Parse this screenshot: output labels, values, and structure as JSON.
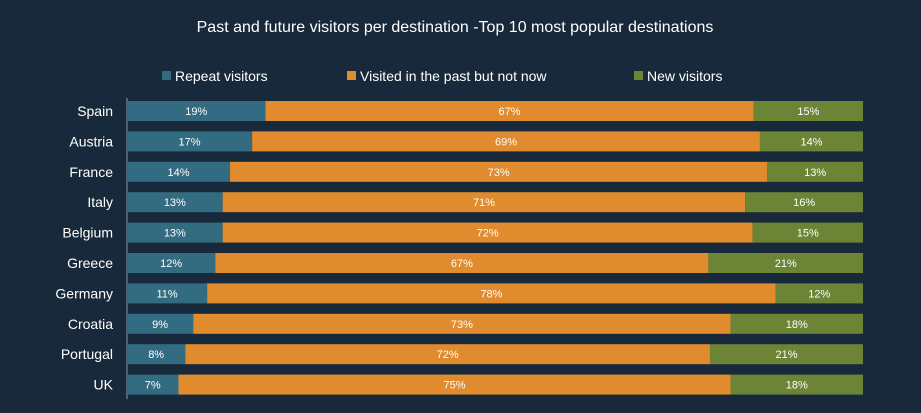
{
  "chart_data": {
    "type": "bar",
    "orientation": "horizontal",
    "stacked": true,
    "title": "Past and future visitors per destination -Top 10 most popular destinations",
    "xlabel": "",
    "ylabel": "",
    "legend_position": "top",
    "grid": false,
    "categories": [
      "Spain",
      "Austria",
      "France",
      "Italy",
      "Belgium",
      "Greece",
      "Germany",
      "Croatia",
      "Portugal",
      "UK"
    ],
    "series": [
      {
        "name": "Repeat visitors",
        "color": "#336b80",
        "values": [
          19,
          17,
          14,
          13,
          13,
          12,
          11,
          9,
          8,
          7
        ]
      },
      {
        "name": "Visited in the past but not now",
        "color": "#e08b2d",
        "values": [
          67,
          69,
          73,
          71,
          72,
          67,
          78,
          73,
          72,
          75
        ]
      },
      {
        "name": "New visitors",
        "color": "#6b8436",
        "values": [
          15,
          14,
          13,
          16,
          15,
          21,
          12,
          18,
          21,
          18
        ]
      }
    ],
    "value_suffix": "%"
  }
}
